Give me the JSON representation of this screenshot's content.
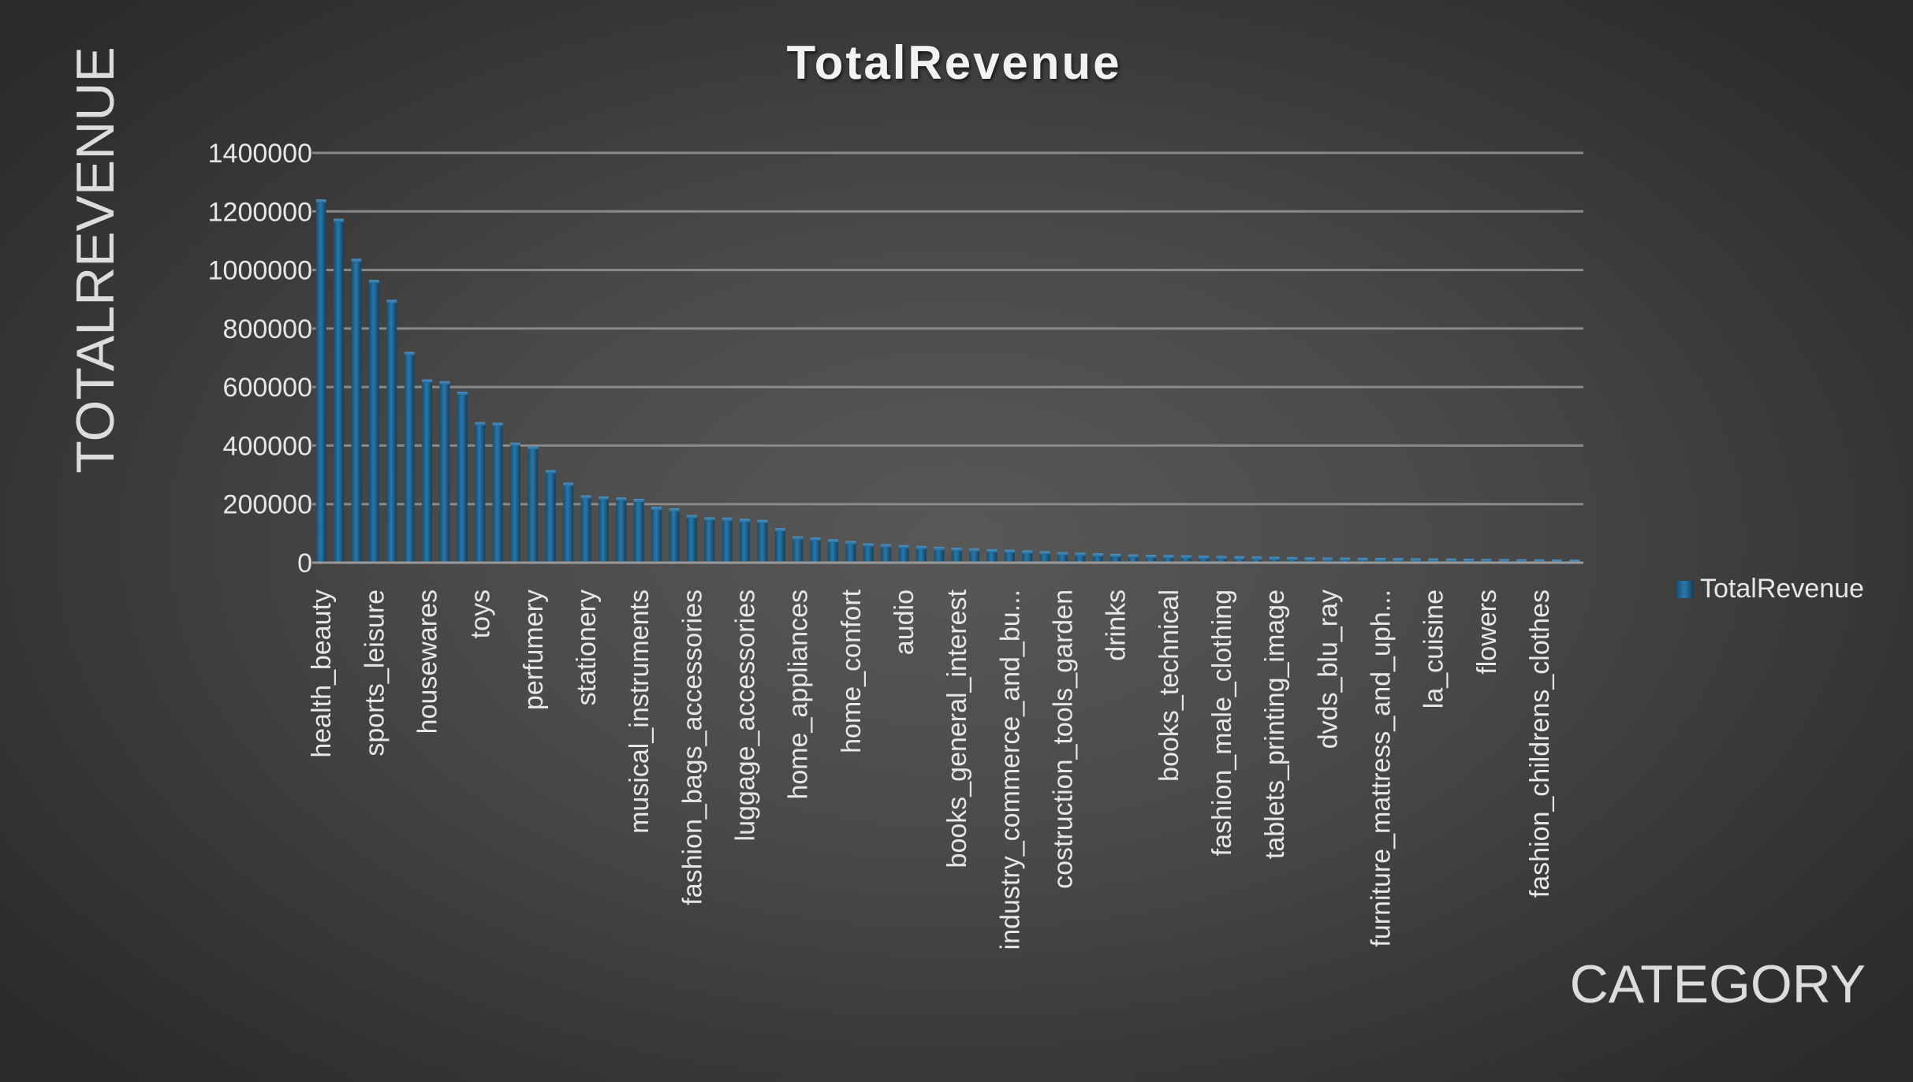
{
  "chart_data": {
    "type": "bar",
    "title": "TotalRevenue",
    "xlabel": "CATEGORY",
    "ylabel": "TOTALREVENUE",
    "legend": {
      "position": "right",
      "entries": [
        "TotalRevenue"
      ]
    },
    "grid": true,
    "ylim": [
      0,
      1400000
    ],
    "yticks": [
      0,
      200000,
      400000,
      600000,
      800000,
      1000000,
      1200000,
      1400000
    ],
    "category_count": 72,
    "categories": [
      "health_beauty",
      "",
      "",
      "sports_leisure",
      "",
      "",
      "housewares",
      "",
      "",
      "toys",
      "",
      "",
      "perfumery",
      "",
      "",
      "stationery",
      "",
      "",
      "musical_instruments",
      "",
      "",
      "fashion_bags_accessories",
      "",
      "",
      "luggage_accessories",
      "",
      "",
      "home_appliances",
      "",
      "",
      "home_confort",
      "",
      "",
      "audio",
      "",
      "",
      "books_general_interest",
      "",
      "",
      "industry_commerce_and_bu...",
      "",
      "",
      "costruction_tools_garden",
      "",
      "",
      "drinks",
      "",
      "",
      "books_technical",
      "",
      "",
      "fashion_male_clothing",
      "",
      "",
      "tablets_printing_image",
      "",
      "",
      "dvds_blu_ray",
      "",
      "",
      "furniture_mattress_and_uph...",
      "",
      "",
      "la_cuisine",
      "",
      "",
      "flowers",
      "",
      "",
      "fashion_childrens_clothes",
      "",
      ""
    ],
    "series": [
      {
        "name": "TotalRevenue",
        "color": "#1f5f8b",
        "values": [
          1233000,
          1167000,
          1030000,
          958000,
          890000,
          712000,
          618000,
          612000,
          576000,
          472000,
          470000,
          402000,
          390000,
          308000,
          265000,
          222000,
          218000,
          215000,
          210000,
          183000,
          178000,
          155000,
          147000,
          146000,
          142000,
          138000,
          110000,
          82000,
          78000,
          72000,
          66000,
          58000,
          55000,
          52000,
          49000,
          46000,
          43000,
          41000,
          38000,
          36000,
          34000,
          31000,
          28000,
          26000,
          24000,
          22000,
          20000,
          19000,
          18000,
          17000,
          16000,
          15000,
          14000,
          13000,
          12000,
          11000,
          10000,
          9500,
          9000,
          8500,
          8000,
          7500,
          7000,
          6500,
          6000,
          5500,
          5000,
          4500,
          4000,
          3500,
          3000,
          2500
        ]
      }
    ]
  }
}
